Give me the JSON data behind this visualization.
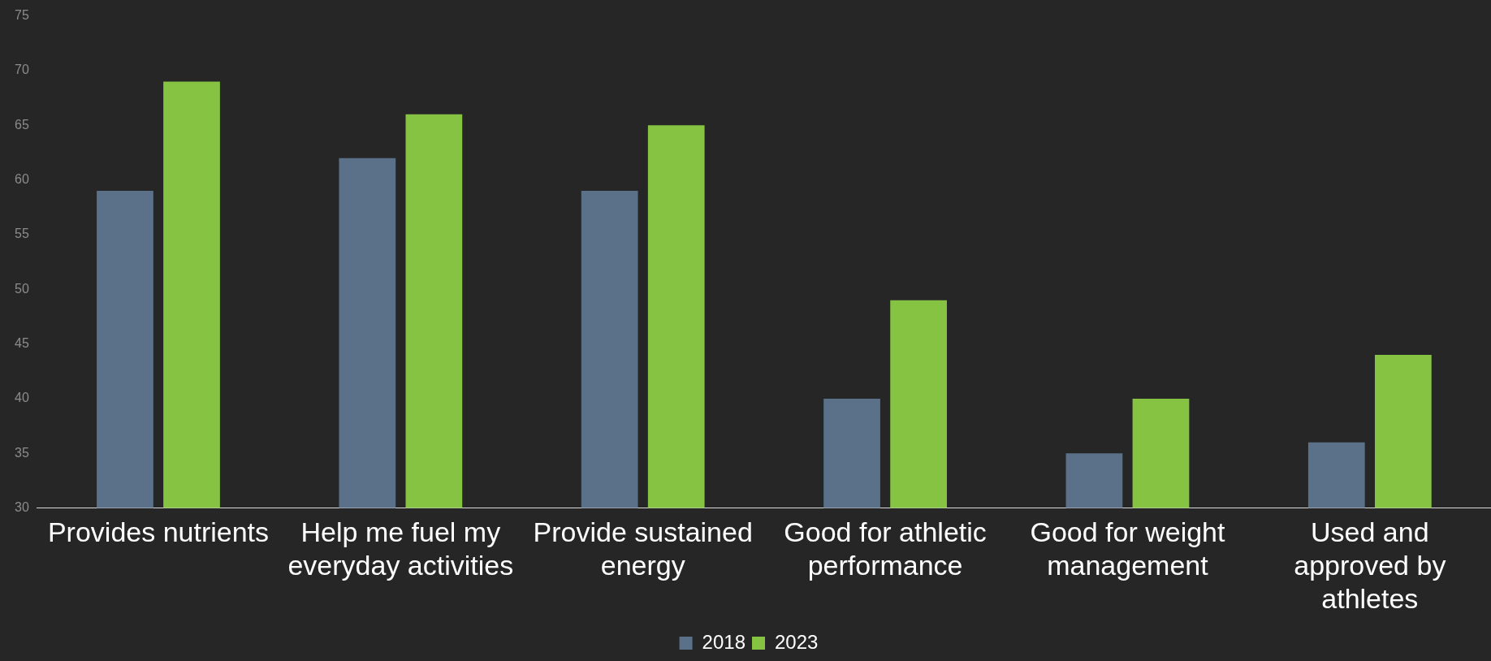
{
  "chart_data": {
    "type": "bar",
    "categories": [
      "Provides nutrients",
      "Help me fuel my everyday activities",
      "Provide sustained energy",
      "Good for athletic performance",
      "Good for weight management",
      "Used and approved by athletes"
    ],
    "series": [
      {
        "name": "2018",
        "color": "#5a7189",
        "values": [
          59,
          62,
          59,
          40,
          35,
          36
        ]
      },
      {
        "name": "2023",
        "color": "#86c343",
        "values": [
          69,
          66,
          65,
          49,
          40,
          44
        ]
      }
    ],
    "ylim": [
      30,
      75
    ],
    "yticks": [
      30,
      35,
      40,
      45,
      50,
      55,
      60,
      65,
      70,
      75
    ],
    "grid": false,
    "legend": "bottom"
  }
}
